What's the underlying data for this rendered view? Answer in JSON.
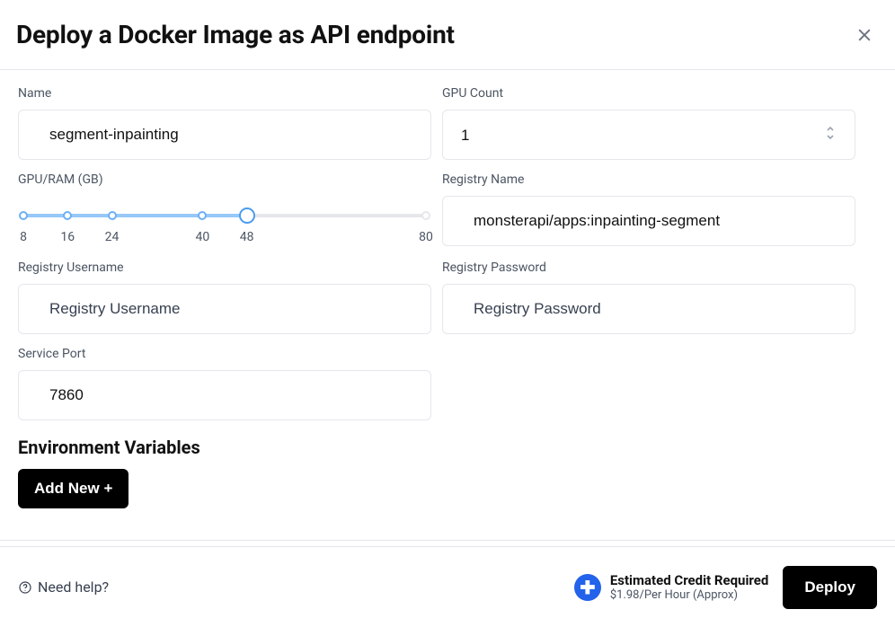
{
  "header": {
    "title": "Deploy a Docker Image as API endpoint"
  },
  "form": {
    "name": {
      "label": "Name",
      "value": "segment-inpainting"
    },
    "gpu_count": {
      "label": "GPU Count",
      "value": "1"
    },
    "gpu_ram": {
      "label": "GPU/RAM (GB)",
      "ticks": [
        {
          "label": "8",
          "pos_pct": 0.0
        },
        {
          "label": "16",
          "pos_pct": 11.0
        },
        {
          "label": "24",
          "pos_pct": 22.0
        },
        {
          "label": "40",
          "pos_pct": 44.5
        },
        {
          "label": "48",
          "pos_pct": 55.5
        },
        {
          "label": "80",
          "pos_pct": 100.0
        }
      ],
      "selected_index": 4,
      "fill_pct": 55.5,
      "track_color": "#e5e7eb",
      "fill_color": "#96c8f8",
      "thumb_border": "#4a9cef"
    },
    "registry_name": {
      "label": "Registry Name",
      "value": "monsterapi/apps:inpainting-segment"
    },
    "registry_user": {
      "label": "Registry Username",
      "placeholder": "Registry Username",
      "value": ""
    },
    "registry_pass": {
      "label": "Registry Password",
      "placeholder": "Registry Password",
      "value": ""
    },
    "service_port": {
      "label": "Service Port",
      "value": "7860"
    },
    "env_heading": "Environment Variables",
    "add_new_label": "Add New +"
  },
  "footer": {
    "help_label": "Need help?",
    "credit_title": "Estimated Credit Required",
    "credit_sub": "$1.98/Per Hour (Approx)",
    "deploy_label": "Deploy"
  },
  "colors": {
    "border": "#e5e7eb",
    "text_muted": "#4b5563",
    "accent_blue": "#2362ea",
    "black": "#000000"
  }
}
